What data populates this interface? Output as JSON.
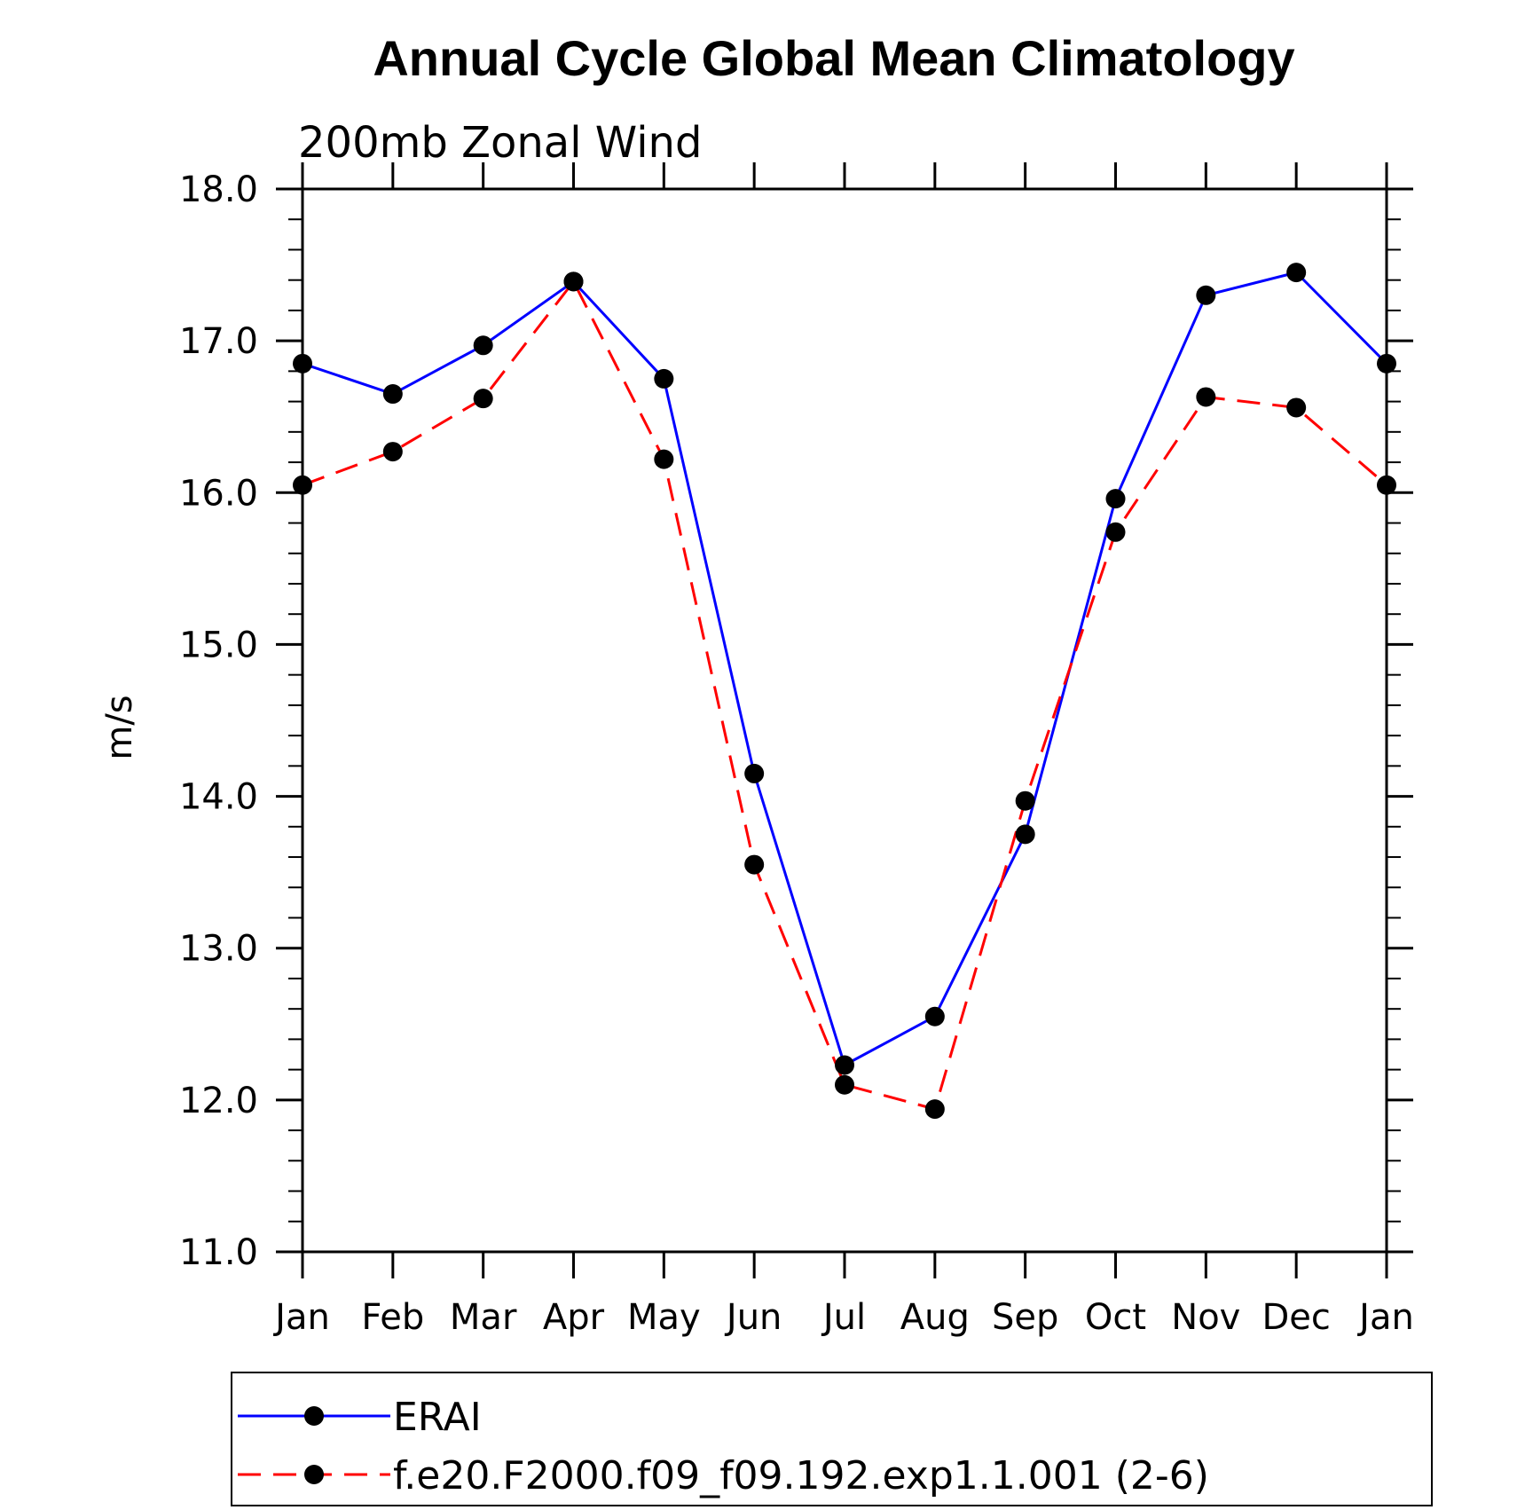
{
  "chart_data": {
    "type": "line",
    "title": "Annual Cycle Global Mean Climatology",
    "subtitle": "200mb Zonal Wind",
    "xlabel": "",
    "ylabel": "m/s",
    "categories": [
      "Jan",
      "Feb",
      "Mar",
      "Apr",
      "May",
      "Jun",
      "Jul",
      "Aug",
      "Sep",
      "Oct",
      "Nov",
      "Dec",
      "Jan"
    ],
    "ylim": [
      11.0,
      18.0
    ],
    "yticks": [
      "11.0",
      "12.0",
      "13.0",
      "14.0",
      "15.0",
      "16.0",
      "17.0",
      "18.0"
    ],
    "grid": false,
    "legend_position": "bottom",
    "series": [
      {
        "name": "ERAI",
        "color": "#0000ff",
        "style": "solid",
        "marker": "filled-circle",
        "values": [
          16.85,
          16.65,
          16.97,
          17.39,
          16.75,
          14.15,
          12.23,
          12.55,
          13.75,
          15.96,
          17.3,
          17.45,
          16.85
        ]
      },
      {
        "name": "f.e20.F2000.f09_f09.192.exp1.1.001 (2-6)",
        "color": "#ff0000",
        "style": "dashed",
        "marker": "filled-circle",
        "values": [
          16.05,
          16.27,
          16.62,
          17.39,
          16.22,
          13.55,
          12.1,
          11.94,
          13.97,
          15.74,
          16.63,
          16.56,
          16.05
        ]
      }
    ]
  }
}
